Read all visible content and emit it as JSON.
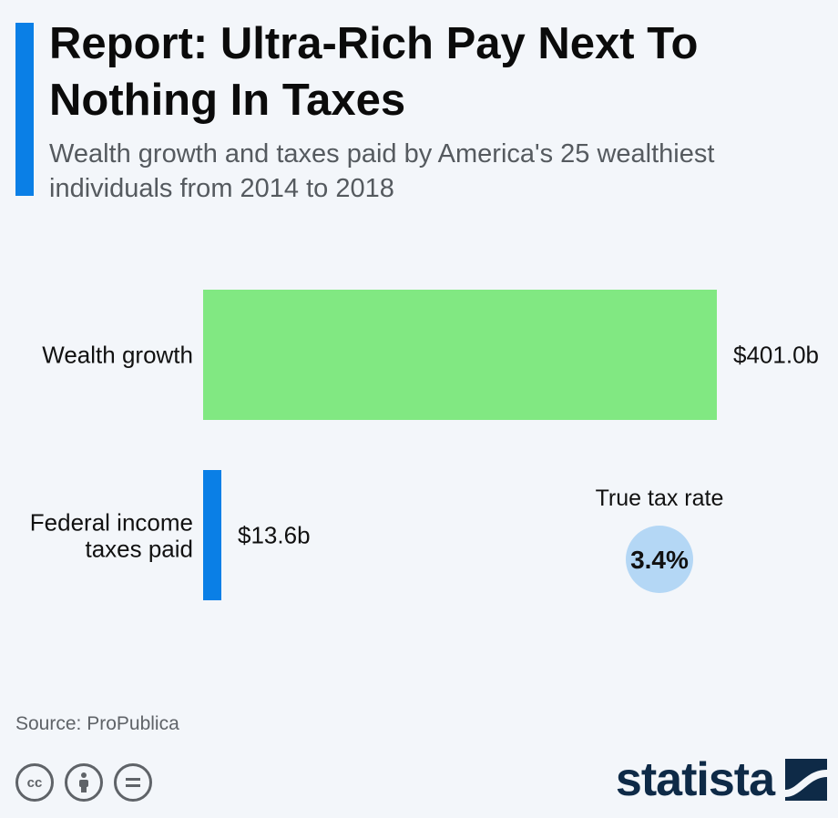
{
  "header": {
    "title": "Report: Ultra-Rich Pay Next To Nothing In Taxes",
    "subtitle": "Wealth growth and taxes paid by America's 25 wealthiest individuals from 2014 to 2018"
  },
  "chart_data": {
    "type": "bar",
    "orientation": "horizontal",
    "categories": [
      "Wealth growth",
      "Federal income taxes paid"
    ],
    "values": [
      401.0,
      13.6
    ],
    "value_labels": [
      "$401.0b",
      "$13.6b"
    ],
    "colors": [
      "#81e882",
      "#0a7fe6"
    ],
    "annotation": {
      "label": "True tax rate",
      "value": 3.4,
      "value_label": "3.4%",
      "color": "#b4d7f5"
    }
  },
  "footer": {
    "source": "Source: ProPublica",
    "brand": "statista",
    "license_icons": [
      "cc-icon",
      "attribution-icon",
      "no-derivatives-icon"
    ]
  },
  "theme": {
    "accent": "#0a7fe6",
    "background": "#f3f6fa",
    "brand_color": "#0e2a47"
  }
}
